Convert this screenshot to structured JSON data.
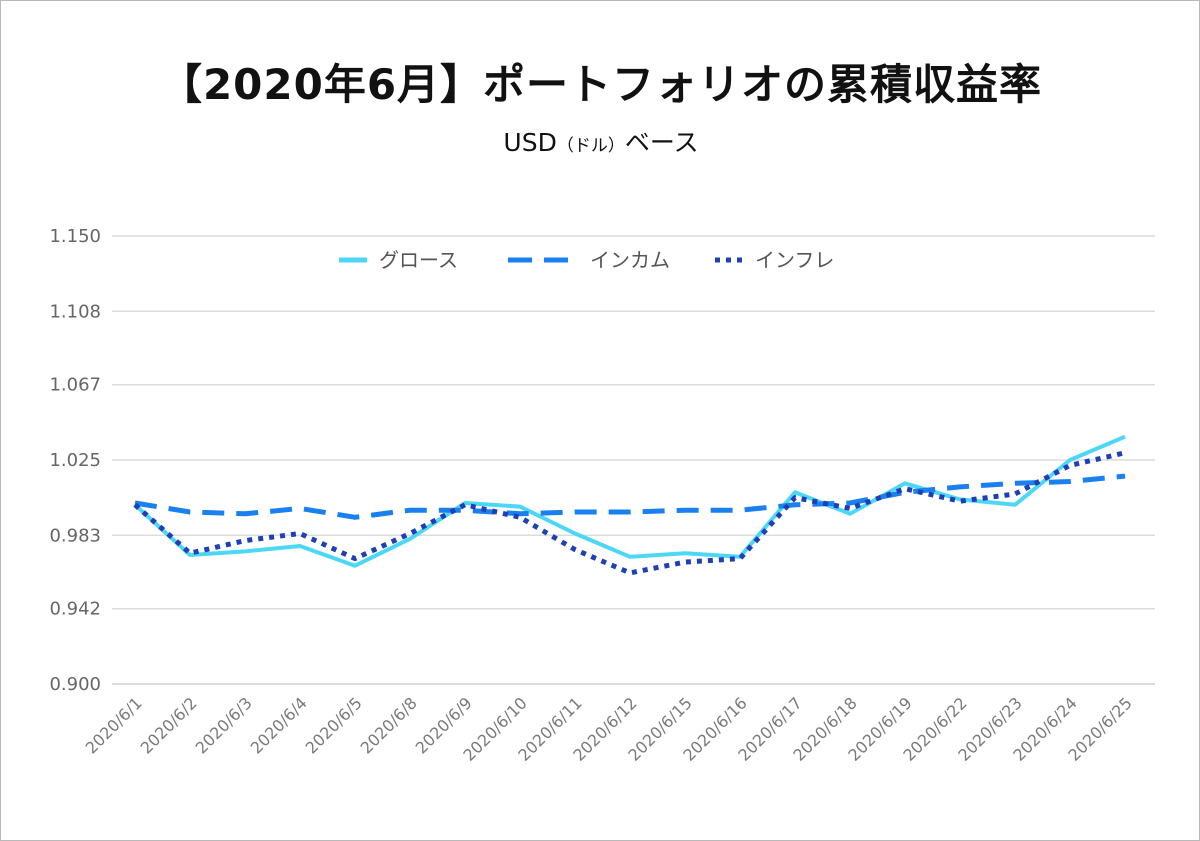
{
  "title": "【2020年6月】ポートフォリオの累積収益率",
  "subtitle": {
    "main_before": "USD",
    "small": "（ドル）",
    "main_after": "ベース"
  },
  "chart_data": {
    "type": "line",
    "x": [
      "2020/6/1",
      "2020/6/2",
      "2020/6/3",
      "2020/6/4",
      "2020/6/5",
      "2020/6/8",
      "2020/6/9",
      "2020/6/10",
      "2020/6/11",
      "2020/6/12",
      "2020/6/15",
      "2020/6/16",
      "2020/6/17",
      "2020/6/18",
      "2020/6/19",
      "2020/6/22",
      "2020/6/23",
      "2020/6/24",
      "2020/6/25"
    ],
    "ylim": [
      0.9,
      1.15
    ],
    "yticks": [
      "0.900",
      "0.942",
      "0.983",
      "1.025",
      "1.067",
      "1.108",
      "1.150"
    ],
    "grid": true,
    "legend_position": "top-center",
    "series": [
      {
        "name": "グロース",
        "style": "solid",
        "color": "#4dd7f7",
        "values": [
          1.0,
          0.972,
          0.974,
          0.977,
          0.966,
          0.981,
          1.001,
          0.999,
          0.984,
          0.971,
          0.973,
          0.971,
          1.007,
          0.995,
          1.012,
          1.003,
          1.0,
          1.025,
          1.038
        ]
      },
      {
        "name": "インカム",
        "style": "dashed",
        "color": "#1a80f0",
        "values": [
          1.001,
          0.996,
          0.995,
          0.998,
          0.993,
          0.997,
          0.997,
          0.995,
          0.996,
          0.996,
          0.997,
          0.997,
          1.0,
          1.001,
          1.007,
          1.01,
          1.012,
          1.013,
          1.016
        ]
      },
      {
        "name": "インフレ",
        "style": "dotted",
        "color": "#1f3fb4",
        "values": [
          1.0,
          0.973,
          0.98,
          0.984,
          0.97,
          0.984,
          1.0,
          0.993,
          0.975,
          0.962,
          0.968,
          0.97,
          1.004,
          0.998,
          1.009,
          1.002,
          1.006,
          1.022,
          1.029
        ]
      }
    ]
  }
}
